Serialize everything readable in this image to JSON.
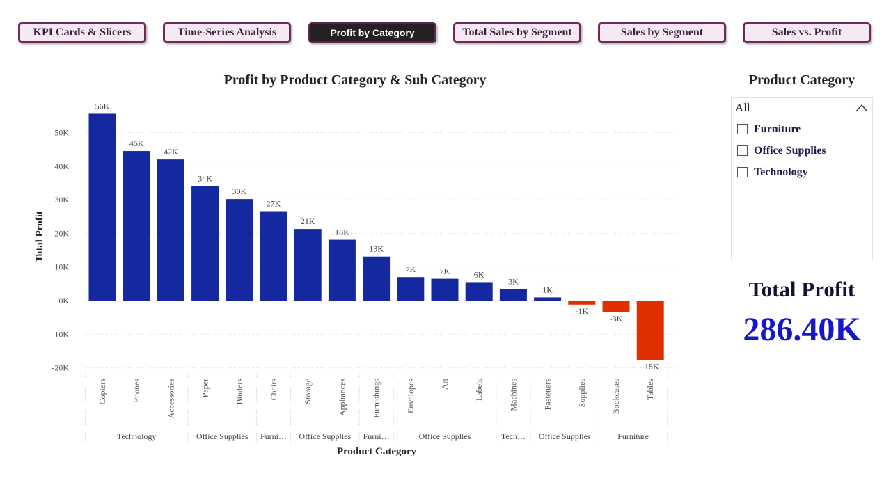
{
  "nav": {
    "buttons": [
      {
        "label": "KPI Cards & Slicers",
        "active": false
      },
      {
        "label": "Time-Series Analysis",
        "active": false
      },
      {
        "label": "Profit by Category",
        "active": true
      },
      {
        "label": "Total Sales by Segment",
        "active": false
      },
      {
        "label": "Sales by Segment",
        "active": false
      },
      {
        "label": "Sales vs. Profit",
        "active": false
      }
    ]
  },
  "slicer": {
    "title": "Product Category",
    "all_label": "All",
    "items": [
      "Furniture",
      "Office Supplies",
      "Technology"
    ]
  },
  "kpi": {
    "label": "Total Profit",
    "value": "286.40K"
  },
  "colors": {
    "positive_bar": "#1428a0",
    "negative_bar": "#e03000",
    "nav_border": "#6f2a5c",
    "kpi_value": "#1717c8"
  },
  "chart_data": {
    "type": "bar",
    "title": "Profit by Product Category & Sub Category",
    "xlabel": "Product Category",
    "ylabel": "Total Profit",
    "ylim": [
      -20000,
      58000
    ],
    "yticks": [
      50000,
      40000,
      30000,
      20000,
      10000,
      0,
      -10000,
      -20000
    ],
    "ytick_labels": [
      "50K",
      "40K",
      "30K",
      "20K",
      "10K",
      "0K",
      "-10K",
      "-20K"
    ],
    "grid": true,
    "categories": [
      "Copiers",
      "Phones",
      "Accessories",
      "Paper",
      "Binders",
      "Chairs",
      "Storage",
      "Appliances",
      "Furnishings",
      "Envelopes",
      "Art",
      "Labels",
      "Machines",
      "Fasteners",
      "Supplies",
      "Bookcases",
      "Tables"
    ],
    "values": [
      55600,
      44500,
      42000,
      34100,
      30200,
      26600,
      21300,
      18100,
      13100,
      7000,
      6500,
      5500,
      3400,
      950,
      -1200,
      -3500,
      -17700
    ],
    "data_labels": [
      "56K",
      "45K",
      "42K",
      "34K",
      "30K",
      "27K",
      "21K",
      "18K",
      "13K",
      "7K",
      "7K",
      "6K",
      "3K",
      "1K",
      "-1K",
      "-3K",
      "-18K"
    ],
    "groups": [
      {
        "label": "Technology",
        "start": 0,
        "end": 2
      },
      {
        "label": "Office Supplies",
        "start": 3,
        "end": 4
      },
      {
        "label": "Furni…",
        "start": 5,
        "end": 5
      },
      {
        "label": "Office Supplies",
        "start": 6,
        "end": 7
      },
      {
        "label": "Furni…",
        "start": 8,
        "end": 8
      },
      {
        "label": "Office Supplies",
        "start": 9,
        "end": 11
      },
      {
        "label": "Tech…",
        "start": 12,
        "end": 12
      },
      {
        "label": "Office Supplies",
        "start": 13,
        "end": 14
      },
      {
        "label": "Furniture",
        "start": 15,
        "end": 16
      }
    ]
  }
}
